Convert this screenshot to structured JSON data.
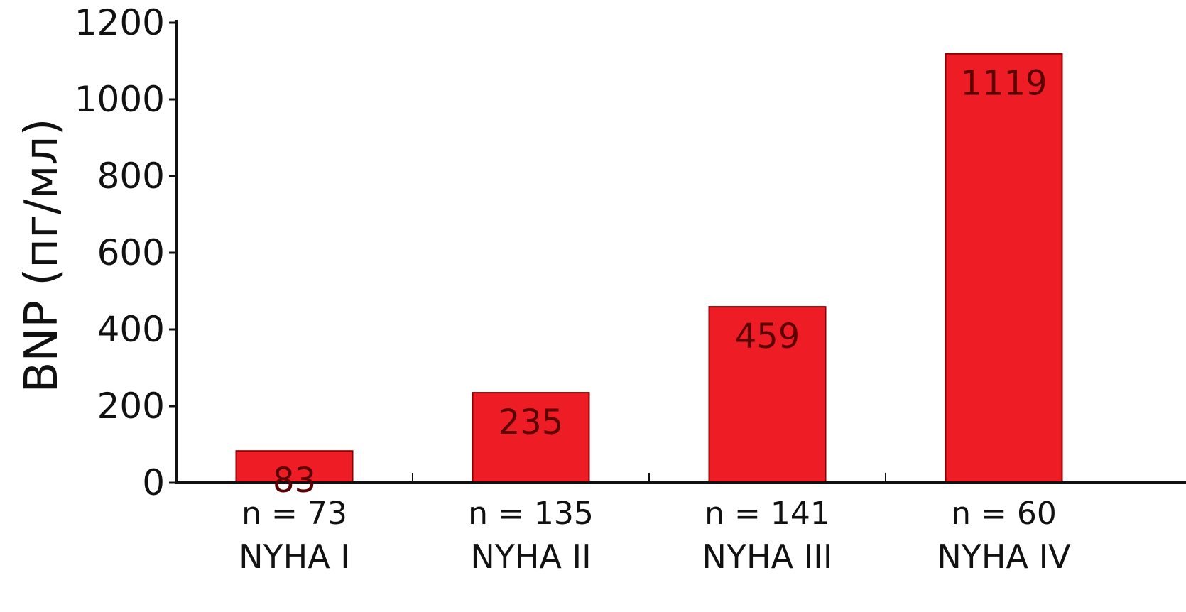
{
  "chart_data": {
    "type": "bar",
    "title": "",
    "xlabel": "",
    "ylabel": "BNP (пг/мл)",
    "ylim": [
      0,
      1200
    ],
    "yticks": [
      0,
      200,
      400,
      600,
      800,
      1000,
      1200
    ],
    "grid": false,
    "legend": "none",
    "bar_color": "#ee1c24",
    "bar_edge_color": "#8b0000",
    "categories": [
      "NYHA I",
      "NYHA II",
      "NYHA III",
      "NYHA IV"
    ],
    "sample_sizes": [
      "n = 73",
      "n = 135",
      "n = 141",
      "n = 60"
    ],
    "values": [
      83,
      235,
      459,
      1119
    ],
    "value_labels": [
      "83",
      "235",
      "459",
      "1119"
    ]
  }
}
